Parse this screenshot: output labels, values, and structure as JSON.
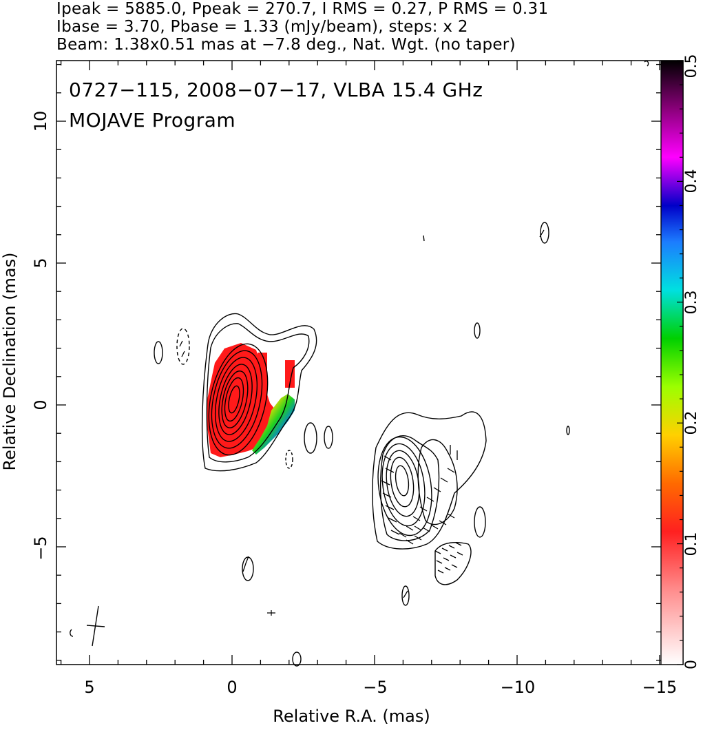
{
  "header": {
    "line1": "Ipeak = 5885.0, Ppeak = 270.7, I RMS = 0.27, P RMS = 0.31",
    "line2": "Ibase = 3.70, Pbase = 1.33 (mJy/beam), steps: x 2",
    "line3": "Beam: 1.38x0.51 mas at −7.8 deg., Nat. Wgt. (no taper)"
  },
  "panel": {
    "title_line1": "0727−115, 2008−07−17, VLBA 15.4 GHz",
    "title_line2": "MOJAVE Program"
  },
  "axes": {
    "xlabel": "Relative R.A. (mas)",
    "ylabel": "Relative Declination (mas)",
    "x_ticks": [
      "5",
      "0",
      "−5",
      "−10",
      "−15"
    ],
    "y_ticks": [
      "10",
      "5",
      "0",
      "−5"
    ]
  },
  "colorbar": {
    "ticks": [
      "0",
      "0.1",
      "0.2",
      "0.3",
      "0.4",
      "0.5"
    ],
    "range": [
      0,
      0.5
    ]
  },
  "colors": {
    "frame": "#000000",
    "pol_red": "#ff1a1a",
    "colorbar_stops": [
      "#ffffff",
      "#ff3030",
      "#ff6a00",
      "#ffd000",
      "#bfff00",
      "#00d000",
      "#00e0e0",
      "#2060ff",
      "#0000c0",
      "#ff00ff",
      "#600060",
      "#000000"
    ]
  }
}
